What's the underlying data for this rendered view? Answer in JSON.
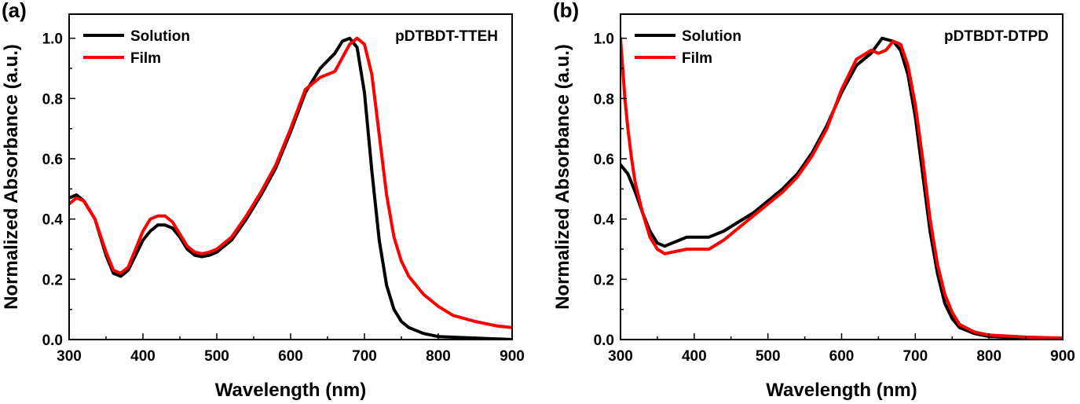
{
  "colors": {
    "solution": "#000000",
    "film": "#ff0000",
    "axis": "#000000"
  },
  "chart_data": [
    {
      "panel_label": "(a)",
      "type": "line",
      "title": "pDTBDT-TTEH",
      "xlabel": "Wavelength (nm)",
      "ylabel": "Normalized Absorbance (a.u.)",
      "xlim": [
        300,
        900
      ],
      "ylim": [
        0,
        1.08
      ],
      "x_ticks": [
        300,
        400,
        500,
        600,
        700,
        800,
        900
      ],
      "y_ticks": [
        "0.0",
        "0.2",
        "0.4",
        "0.6",
        "0.8",
        "1.0"
      ],
      "legend_position": "top-left",
      "grid": false,
      "series": [
        {
          "name": "Solution",
          "color": "#000000",
          "x": [
            300,
            310,
            320,
            335,
            350,
            360,
            370,
            380,
            390,
            400,
            410,
            420,
            430,
            440,
            450,
            460,
            470,
            480,
            490,
            500,
            520,
            540,
            560,
            580,
            600,
            620,
            640,
            660,
            670,
            680,
            690,
            700,
            710,
            720,
            730,
            740,
            750,
            760,
            780,
            800,
            850,
            900
          ],
          "y": [
            0.47,
            0.48,
            0.46,
            0.4,
            0.28,
            0.22,
            0.21,
            0.23,
            0.28,
            0.33,
            0.36,
            0.38,
            0.38,
            0.37,
            0.34,
            0.3,
            0.28,
            0.275,
            0.28,
            0.29,
            0.33,
            0.4,
            0.48,
            0.57,
            0.69,
            0.82,
            0.9,
            0.95,
            0.99,
            1.0,
            0.97,
            0.82,
            0.56,
            0.33,
            0.18,
            0.1,
            0.06,
            0.04,
            0.02,
            0.01,
            0.005,
            0.0
          ]
        },
        {
          "name": "Film",
          "color": "#ff0000",
          "x": [
            300,
            310,
            320,
            335,
            350,
            360,
            370,
            380,
            390,
            400,
            410,
            420,
            430,
            440,
            450,
            460,
            470,
            480,
            490,
            500,
            520,
            540,
            560,
            580,
            600,
            620,
            640,
            660,
            680,
            690,
            700,
            710,
            720,
            730,
            740,
            750,
            760,
            780,
            800,
            820,
            850,
            880,
            900
          ],
          "y": [
            0.45,
            0.47,
            0.46,
            0.4,
            0.29,
            0.23,
            0.22,
            0.24,
            0.3,
            0.36,
            0.4,
            0.41,
            0.41,
            0.39,
            0.35,
            0.31,
            0.29,
            0.285,
            0.29,
            0.3,
            0.34,
            0.41,
            0.49,
            0.58,
            0.7,
            0.83,
            0.87,
            0.89,
            0.98,
            1.0,
            0.98,
            0.88,
            0.68,
            0.48,
            0.34,
            0.26,
            0.21,
            0.15,
            0.11,
            0.08,
            0.06,
            0.045,
            0.04
          ]
        }
      ]
    },
    {
      "panel_label": "(b)",
      "type": "line",
      "title": "pDTBDT-DTPD",
      "xlabel": "Wavelength (nm)",
      "ylabel": "Normalized Absorbance (a.u.)",
      "xlim": [
        300,
        900
      ],
      "ylim": [
        0,
        1.08
      ],
      "x_ticks": [
        300,
        400,
        500,
        600,
        700,
        800,
        900
      ],
      "y_ticks": [
        "0.0",
        "0.2",
        "0.4",
        "0.6",
        "0.8",
        "1.0"
      ],
      "legend_position": "top-left",
      "grid": false,
      "series": [
        {
          "name": "Solution",
          "color": "#000000",
          "x": [
            300,
            310,
            320,
            330,
            340,
            350,
            360,
            370,
            380,
            390,
            400,
            420,
            440,
            460,
            480,
            500,
            520,
            540,
            560,
            580,
            600,
            620,
            640,
            655,
            670,
            680,
            690,
            700,
            710,
            720,
            730,
            740,
            750,
            760,
            780,
            800,
            850,
            900
          ],
          "y": [
            0.58,
            0.55,
            0.49,
            0.42,
            0.36,
            0.32,
            0.31,
            0.32,
            0.33,
            0.34,
            0.34,
            0.34,
            0.36,
            0.39,
            0.42,
            0.46,
            0.5,
            0.55,
            0.62,
            0.71,
            0.82,
            0.91,
            0.95,
            1.0,
            0.99,
            0.96,
            0.88,
            0.74,
            0.55,
            0.36,
            0.22,
            0.12,
            0.07,
            0.04,
            0.02,
            0.01,
            0.005,
            0.0
          ]
        },
        {
          "name": "Film",
          "color": "#ff0000",
          "x": [
            300,
            303,
            306,
            310,
            315,
            320,
            330,
            340,
            350,
            360,
            370,
            380,
            390,
            400,
            420,
            440,
            460,
            480,
            500,
            520,
            540,
            560,
            580,
            600,
            620,
            640,
            650,
            660,
            670,
            680,
            690,
            700,
            710,
            720,
            730,
            740,
            750,
            760,
            780,
            800,
            850,
            900
          ],
          "y": [
            1.0,
            0.9,
            0.8,
            0.7,
            0.6,
            0.52,
            0.42,
            0.34,
            0.3,
            0.285,
            0.29,
            0.295,
            0.3,
            0.3,
            0.3,
            0.33,
            0.37,
            0.41,
            0.45,
            0.49,
            0.54,
            0.61,
            0.7,
            0.83,
            0.93,
            0.96,
            0.95,
            0.96,
            0.99,
            0.98,
            0.91,
            0.78,
            0.6,
            0.4,
            0.25,
            0.15,
            0.09,
            0.05,
            0.025,
            0.015,
            0.008,
            0.005
          ]
        }
      ]
    }
  ]
}
